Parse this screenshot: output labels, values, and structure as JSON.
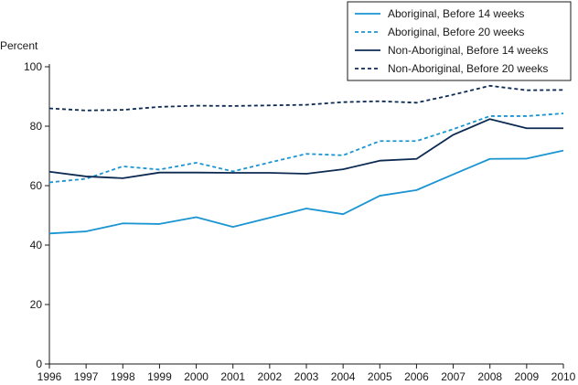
{
  "chart_data": {
    "type": "line",
    "title": "",
    "xlabel": "",
    "ylabel": "Percent",
    "x": [
      1996,
      1997,
      1998,
      1999,
      2000,
      2001,
      2002,
      2003,
      2004,
      2005,
      2006,
      2007,
      2008,
      2009,
      2010
    ],
    "x_ticks": [
      "1996",
      "1997",
      "1998",
      "1999",
      "2000",
      "2001",
      "2002",
      "2003",
      "2004",
      "2005",
      "2006",
      "2007",
      "2008",
      "2009",
      "2010"
    ],
    "ylim": [
      0,
      100
    ],
    "y_ticks": [
      0,
      20,
      40,
      60,
      80,
      100
    ],
    "grid": false,
    "legend_position": "top-right",
    "series": [
      {
        "name": "Aboriginal, Before 14 weeks",
        "color": "#1a95d2",
        "dash": "solid",
        "values": [
          43.9,
          44.6,
          47.3,
          47.1,
          49.4,
          46.1,
          49.2,
          52.3,
          50.4,
          56.6,
          58.5,
          63.8,
          69.0,
          69.1,
          71.8
        ]
      },
      {
        "name": "Aboriginal, Before 20 weeks",
        "color": "#1a95d2",
        "dash": "dashed",
        "values": [
          61.1,
          62.3,
          66.5,
          65.4,
          67.7,
          64.8,
          67.8,
          70.7,
          70.2,
          75.0,
          75.0,
          79.0,
          83.4,
          83.4,
          84.3
        ]
      },
      {
        "name": "Non-Aboriginal, Before 14 weeks",
        "color": "#0d2b52",
        "dash": "solid",
        "values": [
          64.7,
          63.1,
          62.5,
          64.4,
          64.4,
          64.3,
          64.3,
          64.0,
          65.5,
          68.4,
          69.0,
          77.1,
          82.4,
          79.3,
          79.3
        ]
      },
      {
        "name": "Non-Aboriginal, Before 20 weeks",
        "color": "#0d2b52",
        "dash": "dashed",
        "values": [
          86.0,
          85.3,
          85.5,
          86.5,
          86.9,
          86.8,
          87.0,
          87.2,
          88.1,
          88.4,
          87.9,
          90.6,
          93.6,
          92.1,
          92.2
        ]
      }
    ]
  }
}
